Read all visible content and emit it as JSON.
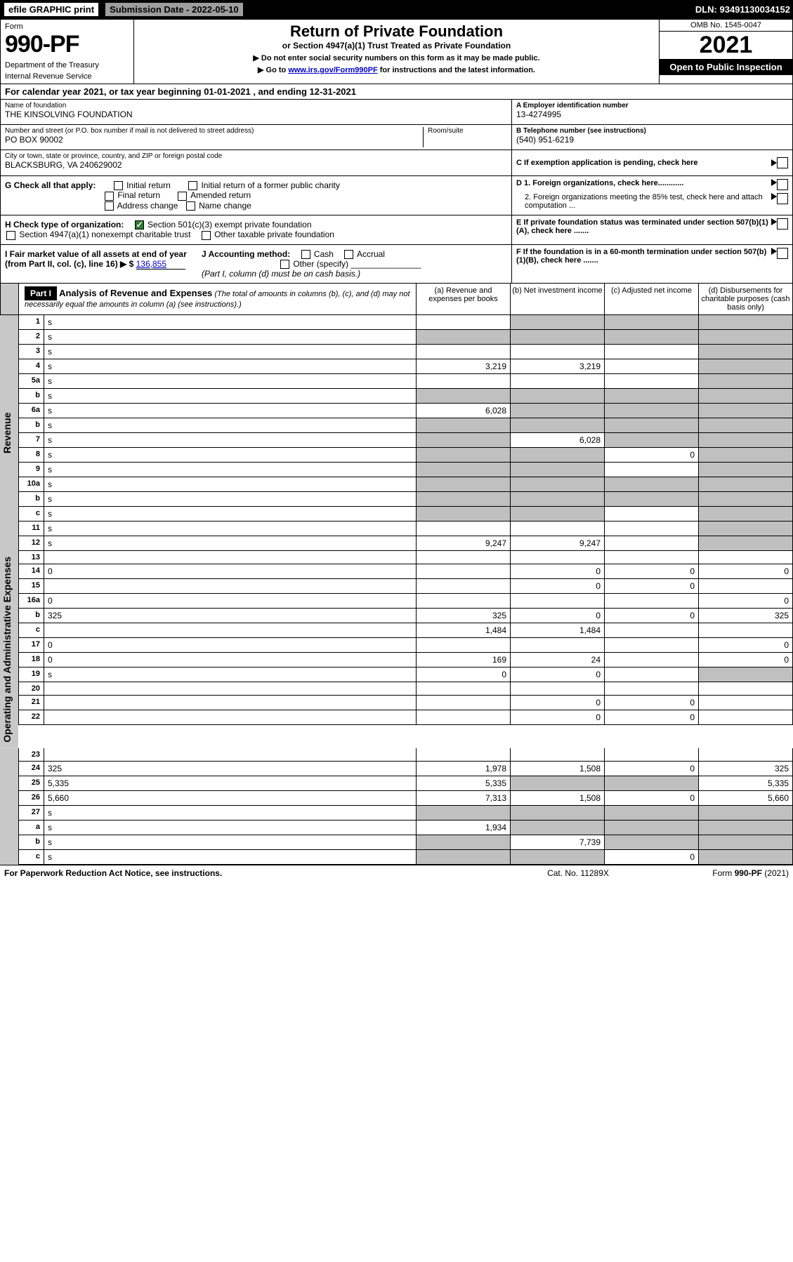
{
  "topbar": {
    "efile": "efile GRAPHIC print",
    "submission_label": "Submission Date - 2022-05-10",
    "dln": "DLN: 93491130034152"
  },
  "header": {
    "form_label": "Form",
    "form_number": "990-PF",
    "dept": "Department of the Treasury",
    "irs": "Internal Revenue Service",
    "title": "Return of Private Foundation",
    "subtitle": "or Section 4947(a)(1) Trust Treated as Private Foundation",
    "instr1": "▶ Do not enter social security numbers on this form as it may be made public.",
    "instr2_pre": "▶ Go to ",
    "instr2_link": "www.irs.gov/Form990PF",
    "instr2_post": " for instructions and the latest information.",
    "omb": "OMB No. 1545-0047",
    "year": "2021",
    "open": "Open to Public Inspection"
  },
  "calyear": "For calendar year 2021, or tax year beginning 01-01-2021             , and ending 12-31-2021",
  "ident": {
    "name_label": "Name of foundation",
    "name": "THE KINSOLVING FOUNDATION",
    "addr_label": "Number and street (or P.O. box number if mail is not delivered to street address)",
    "room_label": "Room/suite",
    "addr": "PO BOX 90002",
    "city_label": "City or town, state or province, country, and ZIP or foreign postal code",
    "city": "BLACKSBURG, VA  240629002",
    "ein_label": "A Employer identification number",
    "ein": "13-4274995",
    "tel_label": "B Telephone number (see instructions)",
    "tel": "(540) 951-6219",
    "exempt_label": "C If exemption application is pending, check here"
  },
  "checks": {
    "g_label": "G Check all that apply:",
    "g_opts": [
      "Initial return",
      "Initial return of a former public charity",
      "Final return",
      "Amended return",
      "Address change",
      "Name change"
    ],
    "h_label": "H Check type of organization:",
    "h1": "Section 501(c)(3) exempt private foundation",
    "h2": "Section 4947(a)(1) nonexempt charitable trust",
    "h3": "Other taxable private foundation",
    "i_label": "I Fair market value of all assets at end of year (from Part II, col. (c), line 16) ▶ $",
    "i_val": "136,855",
    "j_label": "J Accounting method:",
    "j_cash": "Cash",
    "j_accrual": "Accrual",
    "j_other": "Other (specify)",
    "j_note": "(Part I, column (d) must be on cash basis.)",
    "d1": "D 1. Foreign organizations, check here............",
    "d2": "2. Foreign organizations meeting the 85% test, check here and attach computation ...",
    "e": "E  If private foundation status was terminated under section 507(b)(1)(A), check here .......",
    "f": "F  If the foundation is in a 60-month termination under section 507(b)(1)(B), check here ......."
  },
  "part1": {
    "label": "Part I",
    "title": "Analysis of Revenue and Expenses",
    "note": "(The total of amounts in columns (b), (c), and (d) may not necessarily equal the amounts in column (a) (see instructions).)",
    "cols": {
      "a": "(a) Revenue and expenses per books",
      "b": "(b) Net investment income",
      "c": "(c) Adjusted net income",
      "d": "(d) Disbursements for charitable purposes (cash basis only)"
    }
  },
  "vlabels": {
    "rev": "Revenue",
    "exp": "Operating and Administrative Expenses"
  },
  "rows": [
    {
      "n": "1",
      "d": "s",
      "a": "",
      "b": "s",
      "c": "s"
    },
    {
      "n": "2",
      "d": "s",
      "a": "s",
      "b": "s",
      "c": "s"
    },
    {
      "n": "3",
      "d": "s",
      "a": "",
      "b": "",
      "c": ""
    },
    {
      "n": "4",
      "d": "s",
      "a": "3,219",
      "b": "3,219",
      "c": ""
    },
    {
      "n": "5a",
      "d": "s",
      "a": "",
      "b": "",
      "c": ""
    },
    {
      "n": "b",
      "d": "s",
      "a": "s",
      "b": "s",
      "c": "s"
    },
    {
      "n": "6a",
      "d": "s",
      "a": "6,028",
      "b": "s",
      "c": "s"
    },
    {
      "n": "b",
      "d": "s",
      "a": "s",
      "b": "s",
      "c": "s"
    },
    {
      "n": "7",
      "d": "s",
      "a": "s",
      "b": "6,028",
      "c": "s"
    },
    {
      "n": "8",
      "d": "s",
      "a": "s",
      "b": "s",
      "c": "0"
    },
    {
      "n": "9",
      "d": "s",
      "a": "s",
      "b": "s",
      "c": ""
    },
    {
      "n": "10a",
      "d": "s",
      "a": "s",
      "b": "s",
      "c": "s"
    },
    {
      "n": "b",
      "d": "s",
      "a": "s",
      "b": "s",
      "c": "s"
    },
    {
      "n": "c",
      "d": "s",
      "a": "s",
      "b": "s",
      "c": ""
    },
    {
      "n": "11",
      "d": "s",
      "a": "",
      "b": "",
      "c": ""
    },
    {
      "n": "12",
      "d": "s",
      "a": "9,247",
      "b": "9,247",
      "c": ""
    },
    {
      "n": "13",
      "d": "",
      "a": "",
      "b": "",
      "c": ""
    },
    {
      "n": "14",
      "d": "0",
      "a": "",
      "b": "0",
      "c": "0"
    },
    {
      "n": "15",
      "d": "",
      "a": "",
      "b": "0",
      "c": "0"
    },
    {
      "n": "16a",
      "d": "0",
      "a": "",
      "b": "",
      "c": ""
    },
    {
      "n": "b",
      "d": "325",
      "a": "325",
      "b": "0",
      "c": "0"
    },
    {
      "n": "c",
      "d": "",
      "a": "1,484",
      "b": "1,484",
      "c": ""
    },
    {
      "n": "17",
      "d": "0",
      "a": "",
      "b": "",
      "c": ""
    },
    {
      "n": "18",
      "d": "0",
      "a": "169",
      "b": "24",
      "c": ""
    },
    {
      "n": "19",
      "d": "s",
      "a": "0",
      "b": "0",
      "c": ""
    },
    {
      "n": "20",
      "d": "",
      "a": "",
      "b": "",
      "c": ""
    },
    {
      "n": "21",
      "d": "",
      "a": "",
      "b": "0",
      "c": "0"
    },
    {
      "n": "22",
      "d": "",
      "a": "",
      "b": "0",
      "c": "0"
    },
    {
      "n": "23",
      "d": "",
      "a": "",
      "b": "",
      "c": ""
    },
    {
      "n": "24",
      "d": "325",
      "a": "1,978",
      "b": "1,508",
      "c": "0"
    },
    {
      "n": "25",
      "d": "5,335",
      "a": "5,335",
      "b": "s",
      "c": "s"
    },
    {
      "n": "26",
      "d": "5,660",
      "a": "7,313",
      "b": "1,508",
      "c": "0"
    },
    {
      "n": "27",
      "d": "s",
      "a": "s",
      "b": "s",
      "c": "s"
    },
    {
      "n": "a",
      "d": "s",
      "a": "1,934",
      "b": "s",
      "c": "s"
    },
    {
      "n": "b",
      "d": "s",
      "a": "s",
      "b": "7,739",
      "c": "s"
    },
    {
      "n": "c",
      "d": "s",
      "a": "s",
      "b": "s",
      "c": "0"
    }
  ],
  "footer": {
    "left": "For Paperwork Reduction Act Notice, see instructions.",
    "mid": "Cat. No. 11289X",
    "right": "Form 990-PF (2021)"
  },
  "colors": {
    "bg": "#ffffff",
    "border": "#000000",
    "shade": "#c0c0c0",
    "vert": "#c8c8c8",
    "link": "#0000cc",
    "check_on": "#2e7d32"
  }
}
